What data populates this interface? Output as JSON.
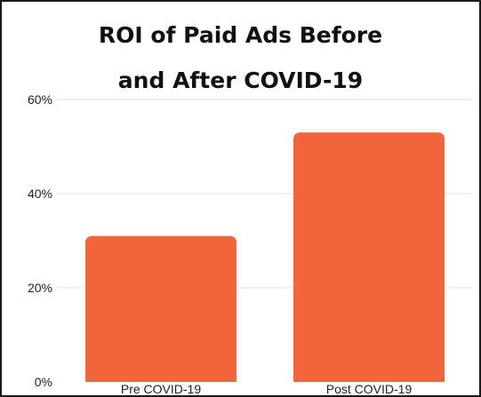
{
  "chart_data": {
    "type": "bar",
    "title_lines": [
      "ROI of Paid Ads Before",
      "and After COVID-19"
    ],
    "categories": [
      "Pre COVID-19",
      "Post COVID-19"
    ],
    "values": [
      31,
      53
    ],
    "value_format": "percent",
    "xlabel": "",
    "ylabel": "",
    "ylim": [
      0,
      60
    ],
    "yticks": [
      "0%",
      "20%",
      "40%",
      "60%"
    ],
    "grid": true,
    "legend": "none",
    "bar_color": "#F2653A",
    "grid_color": "#e2e2e2"
  }
}
